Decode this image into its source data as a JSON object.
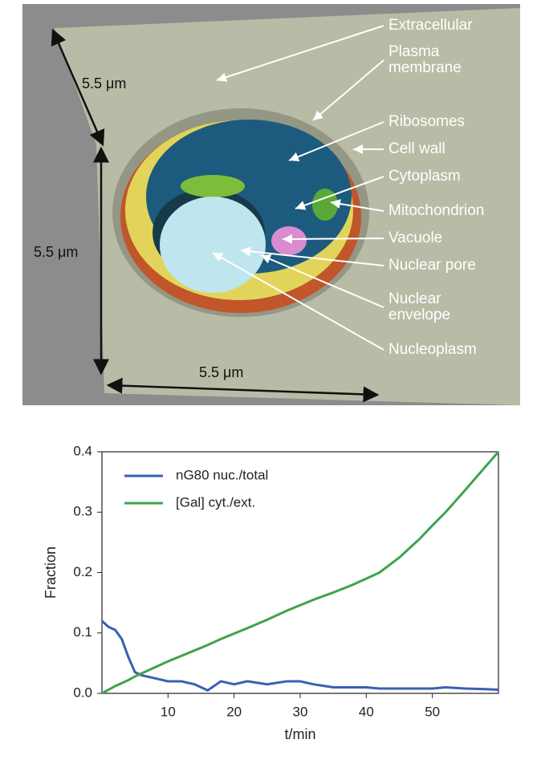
{
  "illustration": {
    "labels": [
      [
        "Extracellular"
      ],
      [
        "Plasma",
        "membrane"
      ],
      [
        "Ribosomes"
      ],
      [
        "Cell wall"
      ],
      [
        "Cytoplasm"
      ],
      [
        "Mitochondrion"
      ],
      [
        "Vacuole"
      ],
      [
        "Nuclear pore"
      ],
      [
        "Nuclear",
        "envelope"
      ],
      [
        "Nucleoplasm"
      ]
    ],
    "dimensions": [
      "5.5 μm",
      "5.5 μm",
      "5.5 μm"
    ]
  },
  "chart_data": {
    "type": "line",
    "x": [
      0,
      1,
      2,
      3,
      4,
      5,
      6,
      8,
      10,
      12,
      14,
      16,
      18,
      20,
      22,
      25,
      28,
      30,
      32,
      35,
      38,
      40,
      42,
      45,
      48,
      50,
      52,
      55,
      58,
      60
    ],
    "series": [
      {
        "name": "nG80 nuc./total",
        "color": "#3a5fb5",
        "values": [
          0.12,
          0.11,
          0.105,
          0.09,
          0.06,
          0.035,
          0.03,
          0.025,
          0.02,
          0.02,
          0.015,
          0.005,
          0.02,
          0.015,
          0.02,
          0.015,
          0.02,
          0.02,
          0.015,
          0.01,
          0.01,
          0.01,
          0.008,
          0.008,
          0.008,
          0.008,
          0.01,
          0.008,
          0.007,
          0.006
        ]
      },
      {
        "name": "[Gal] cyt./ext.",
        "color": "#3fa34d",
        "values": [
          0,
          0.006,
          0.012,
          0.017,
          0.022,
          0.028,
          0.033,
          0.043,
          0.053,
          0.062,
          0.071,
          0.08,
          0.09,
          0.099,
          0.108,
          0.122,
          0.137,
          0.146,
          0.155,
          0.167,
          0.18,
          0.19,
          0.2,
          0.225,
          0.255,
          0.278,
          0.3,
          0.337,
          0.375,
          0.4
        ]
      }
    ],
    "xlabel": "t/min",
    "ylabel": "Fraction",
    "xlim": [
      0,
      60
    ],
    "ylim": [
      0,
      0.4
    ],
    "xticks": [
      10,
      20,
      30,
      40,
      50
    ],
    "yticks": [
      {
        "value": 0,
        "label": "0.0"
      },
      0.1,
      0.2,
      0.3,
      0.4
    ],
    "legend": "upper left",
    "grid": false
  }
}
